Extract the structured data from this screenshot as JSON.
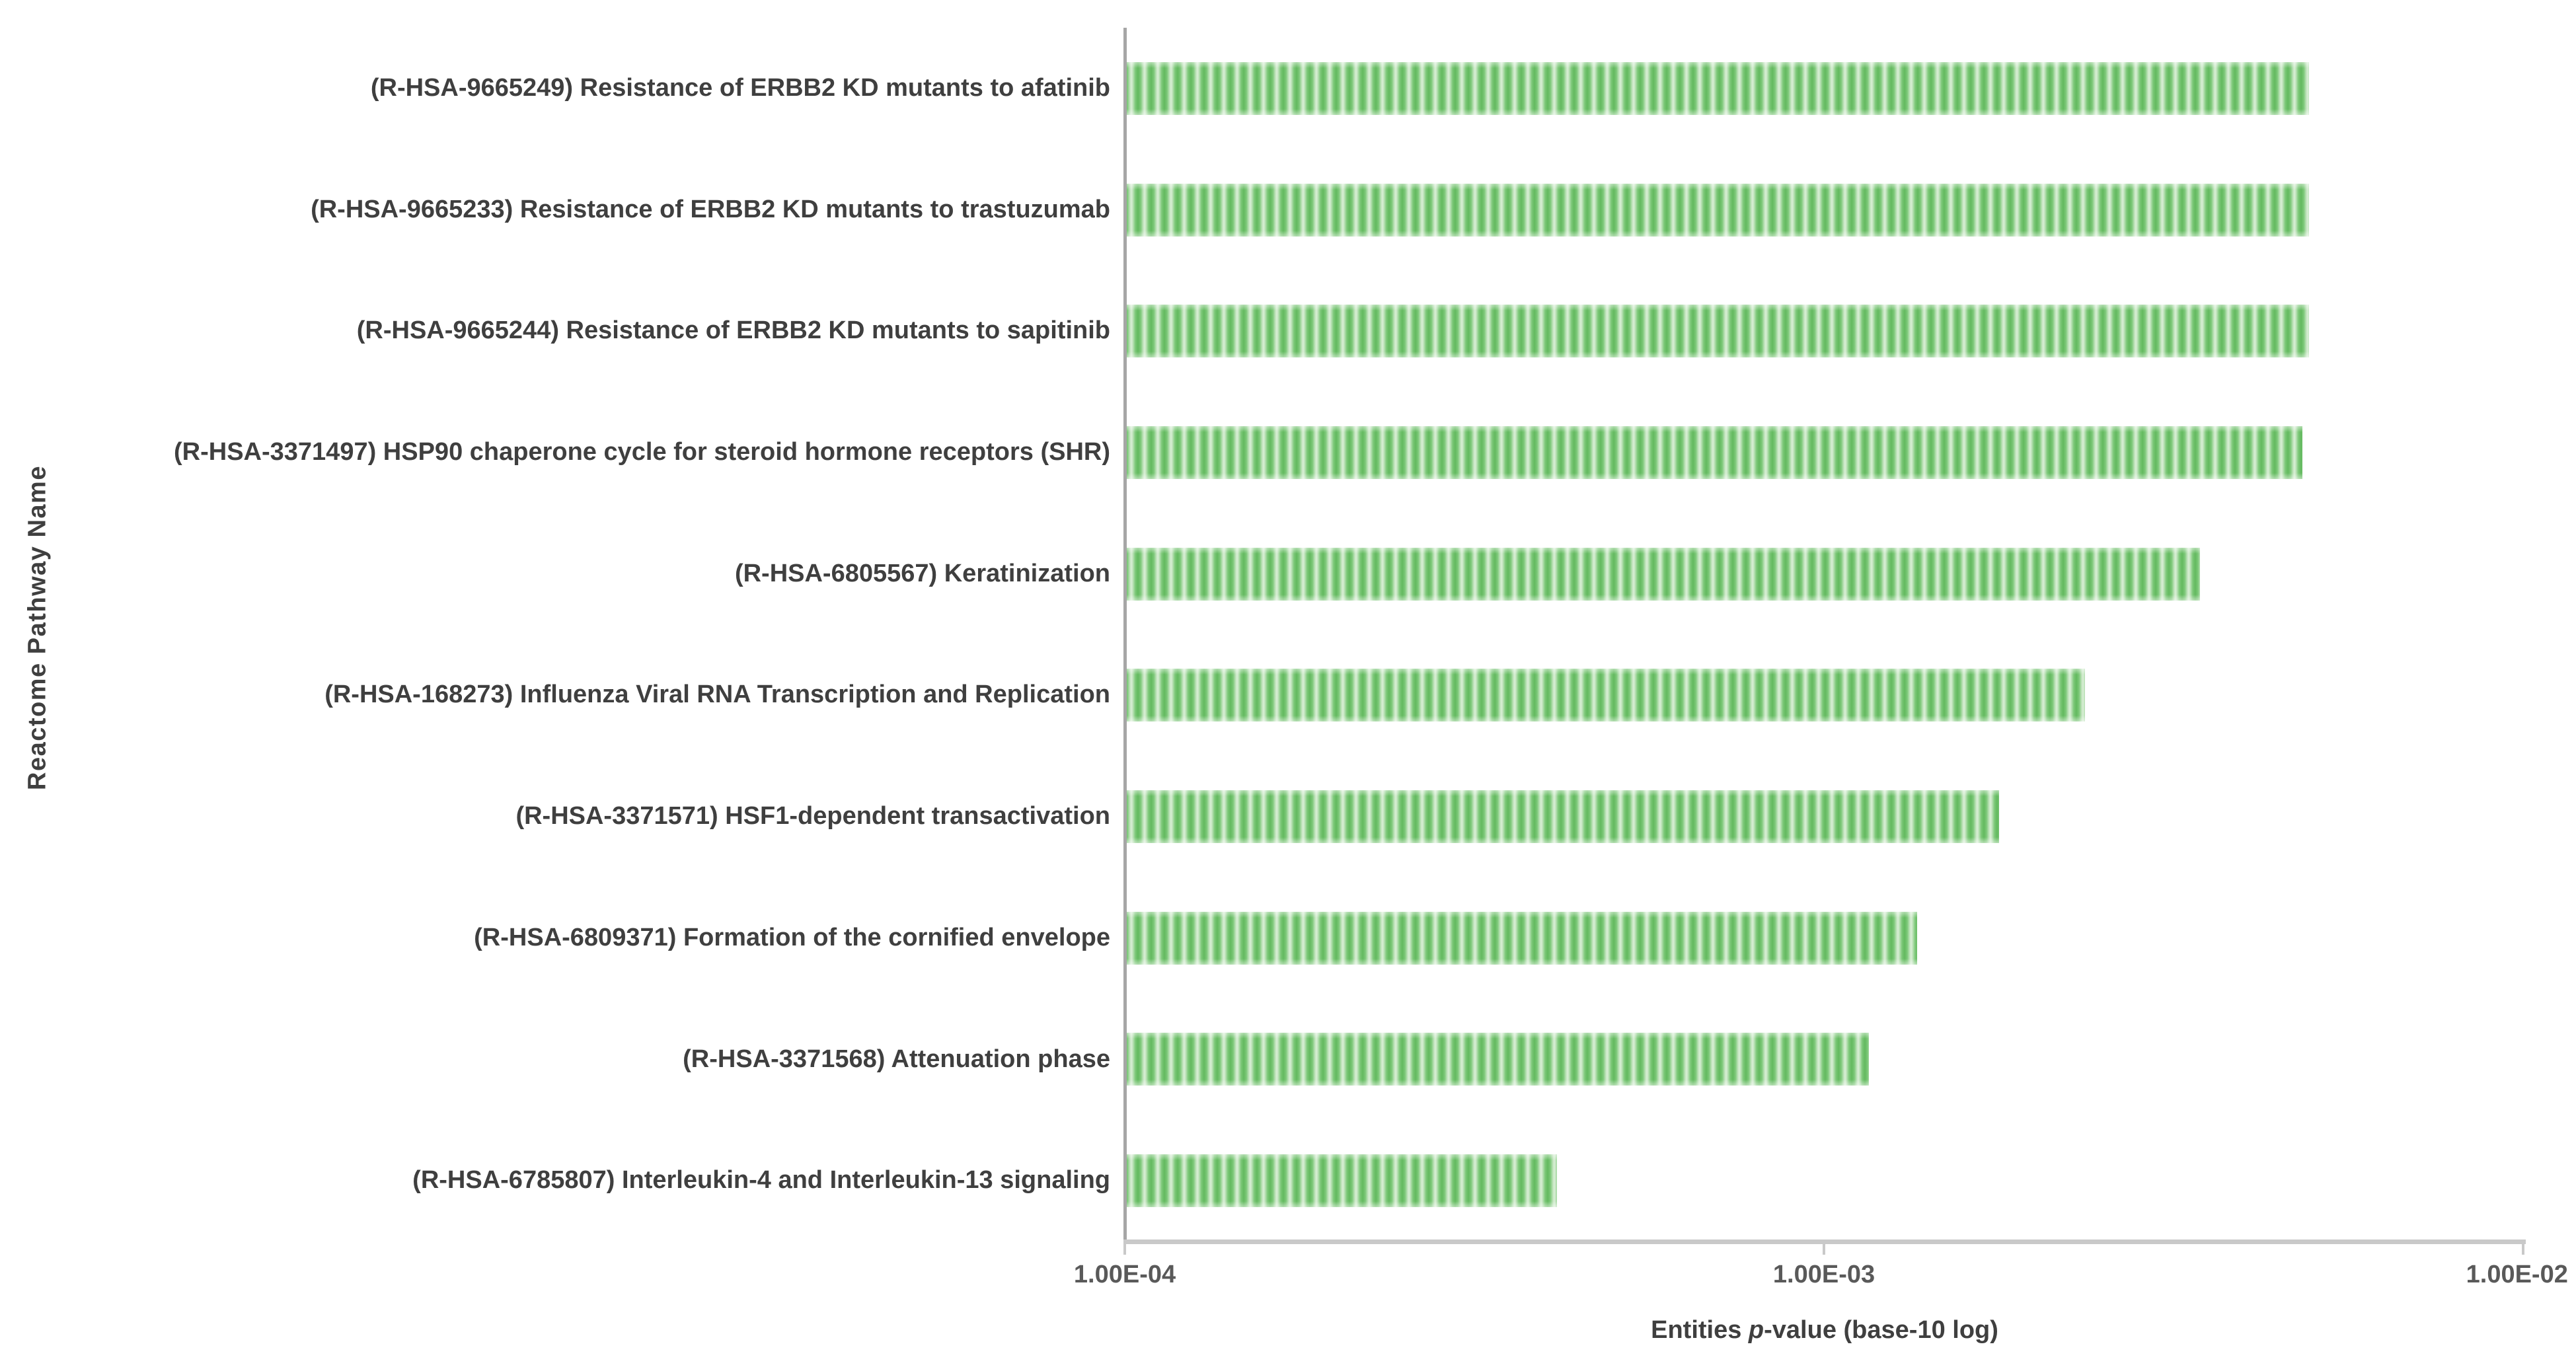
{
  "colors": {
    "bar_stripe_dark": "#63b95f",
    "bar_stripe_light": "#d9efd6",
    "y_axis_line": "#a6a6a6",
    "x_axis_line": "#c9c9c9",
    "label_text": "#3f3f3f",
    "tick_text": "#595959",
    "background": "#ffffff"
  },
  "x_title_parts": {
    "pre": "Entities ",
    "italic": "p",
    "post": "-value (base-10 log)"
  },
  "chart_data": {
    "type": "bar",
    "orientation": "horizontal",
    "title": "",
    "xlabel": "Entities p-value (base-10 log)",
    "ylabel": "Reactome Pathway Name",
    "x_scale": "log10",
    "xlim": [
      0.0001,
      0.01
    ],
    "x_tick_labels": [
      "1.00E-04",
      "1.00E-03",
      "1.00E-02"
    ],
    "grid": false,
    "legend": false,
    "bar_fill_pattern": "vertical-stripes-green",
    "categories": [
      "(R-HSA-9665249) Resistance of ERBB2 KD mutants to afatinib",
      "(R-HSA-9665233) Resistance of ERBB2 KD mutants to trastuzumab",
      "(R-HSA-9665244) Resistance of ERBB2 KD mutants to sapitinib",
      "(R-HSA-3371497) HSP90 chaperone cycle for steroid hormone receptors (SHR)",
      "(R-HSA-6805567) Keratinization",
      "(R-HSA-168273) Influenza Viral RNA Transcription and Replication",
      "(R-HSA-3371571) HSF1-dependent transactivation",
      "(R-HSA-6809371) Formation of the cornified envelope",
      "(R-HSA-3371568) Attenuation phase",
      "(R-HSA-6785807) Interleukin-4 and Interleukin-13 signaling"
    ],
    "values": [
      0.00494,
      0.00494,
      0.00494,
      0.00483,
      0.00345,
      0.00236,
      0.00178,
      0.00136,
      0.00116,
      0.000415
    ]
  }
}
